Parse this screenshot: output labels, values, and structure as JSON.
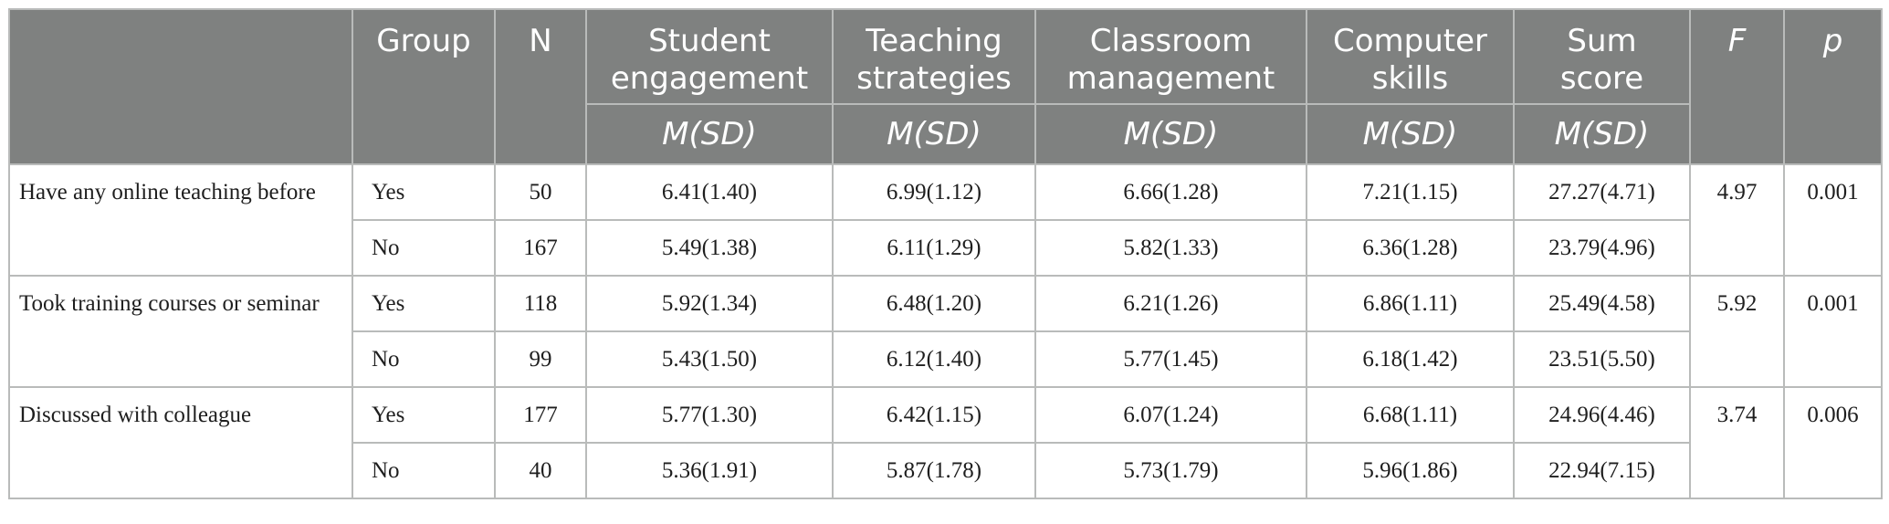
{
  "header": {
    "group": "Group",
    "n": "N",
    "student_engagement": "Student engagement",
    "teaching_strategies": "Teaching strategies",
    "classroom_management": "Classroom management",
    "computer_skills": "Computer skills",
    "sum_score": "Sum score",
    "f": "F",
    "p": "p",
    "msd": "M(SD)"
  },
  "rows": [
    {
      "label": "Have any online teaching before",
      "f": "4.97",
      "p": "0.001",
      "groups": [
        {
          "group": "Yes",
          "n": "50",
          "se": "6.41(1.40)",
          "ts": "6.99(1.12)",
          "cm": "6.66(1.28)",
          "cs": "7.21(1.15)",
          "sum": "27.27(4.71)"
        },
        {
          "group": "No",
          "n": "167",
          "se": "5.49(1.38)",
          "ts": "6.11(1.29)",
          "cm": "5.82(1.33)",
          "cs": "6.36(1.28)",
          "sum": "23.79(4.96)"
        }
      ]
    },
    {
      "label": "Took training courses or seminar",
      "f": "5.92",
      "p": "0.001",
      "groups": [
        {
          "group": "Yes",
          "n": "118",
          "se": "5.92(1.34)",
          "ts": "6.48(1.20)",
          "cm": "6.21(1.26)",
          "cs": "6.86(1.11)",
          "sum": "25.49(4.58)"
        },
        {
          "group": "No",
          "n": "99",
          "se": "5.43(1.50)",
          "ts": "6.12(1.40)",
          "cm": "5.77(1.45)",
          "cs": "6.18(1.42)",
          "sum": "23.51(5.50)"
        }
      ]
    },
    {
      "label": "Discussed with colleague",
      "f": "3.74",
      "p": "0.006",
      "groups": [
        {
          "group": "Yes",
          "n": "177",
          "se": "5.77(1.30)",
          "ts": "6.42(1.15)",
          "cm": "6.07(1.24)",
          "cs": "6.68(1.11)",
          "sum": "24.96(4.46)"
        },
        {
          "group": "No",
          "n": "40",
          "se": "5.36(1.91)",
          "ts": "5.87(1.78)",
          "cm": "5.73(1.79)",
          "cs": "5.96(1.86)",
          "sum": "22.94(7.15)"
        }
      ]
    }
  ]
}
